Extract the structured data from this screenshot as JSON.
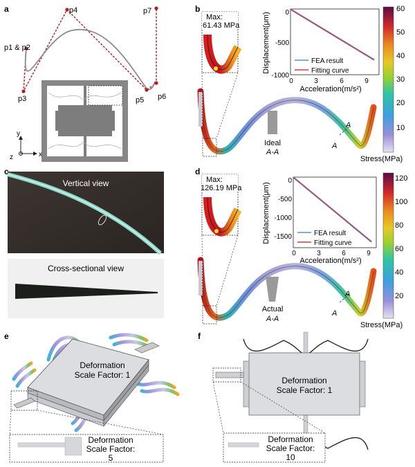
{
  "panels": {
    "a": {
      "label": "a",
      "points": [
        "p1 & p2",
        "p3",
        "p4",
        "p5",
        "p6",
        "p7"
      ],
      "axes": {
        "y": "y",
        "z": "z",
        "x": "x"
      }
    },
    "b": {
      "label": "b",
      "max_label": "Max:",
      "max_value": "61.43 MPa",
      "section_title": "Ideal",
      "section_name": "A-A",
      "cut_label_1": "A",
      "cut_label_2": "A",
      "colorbar_title": "Stress(MPa)",
      "colorbar_ticks": [
        "60",
        "50",
        "40",
        "30",
        "20",
        "10"
      ],
      "inset_ylabel": "Displacement(μm)",
      "inset_xlabel": "Acceleration(m/s²)",
      "inset_yticks": [
        "0",
        "-500",
        "-1000"
      ],
      "inset_xticks": [
        "0",
        "3",
        "6",
        "9"
      ],
      "legend": [
        "FEA result",
        "Fitting curve"
      ]
    },
    "c": {
      "label": "c",
      "view1": "Vertical view",
      "view2": "Cross-sectional view"
    },
    "d": {
      "label": "d",
      "max_label": "Max:",
      "max_value": "126.19 MPa",
      "section_title": "Actual",
      "section_name": "A-A",
      "cut_label_1": "A",
      "cut_label_2": "A",
      "colorbar_title": "Stress(MPa)",
      "colorbar_ticks": [
        "120",
        "100",
        "80",
        "60",
        "40",
        "20"
      ],
      "inset_ylabel": "Displacement(μm)",
      "inset_xlabel": "Acceleration(m/s²)",
      "inset_yticks": [
        "0",
        "-500",
        "-1000",
        "-1500"
      ],
      "inset_xticks": [
        "0",
        "3",
        "6",
        "9"
      ],
      "legend": [
        "FEA result",
        "Fitting curve"
      ]
    },
    "e": {
      "label": "e",
      "deform_line1": "Deformation",
      "deform_line2": "Scale Factor: 1",
      "zoom_line1": "Deformation",
      "zoom_line2": "Scale Factor:",
      "zoom_line3": "5"
    },
    "f": {
      "label": "f",
      "deform_line1": "Deformation",
      "deform_line2": "Scale Factor: 1",
      "zoom_line1": "Deformation",
      "zoom_line2": "Scale Factor:",
      "zoom_line3": "10"
    }
  },
  "colors": {
    "fea": "#5b8fd0",
    "fit": "#e0363a",
    "control_dash": "#c0232b",
    "beam": "#888888"
  },
  "chart_data": [
    {
      "type": "line",
      "panel": "b",
      "xlabel": "Acceleration(m/s²)",
      "ylabel": "Displacement(μm)",
      "xlim": [
        0,
        10.5
      ],
      "ylim": [
        -1000,
        0
      ],
      "series": [
        {
          "name": "FEA result",
          "x": [
            0,
            10
          ],
          "y": [
            0,
            -780
          ]
        },
        {
          "name": "Fitting curve",
          "x": [
            0,
            10
          ],
          "y": [
            0,
            -780
          ]
        }
      ]
    },
    {
      "type": "line",
      "panel": "d",
      "xlabel": "Acceleration(m/s²)",
      "ylabel": "Displacement(μm)",
      "xlim": [
        0,
        10
      ],
      "ylim": [
        -1750,
        0
      ],
      "series": [
        {
          "name": "FEA result",
          "x": [
            0,
            9.5
          ],
          "y": [
            0,
            -1620
          ]
        },
        {
          "name": "Fitting curve",
          "x": [
            0,
            9.5
          ],
          "y": [
            0,
            -1620
          ]
        }
      ]
    }
  ]
}
